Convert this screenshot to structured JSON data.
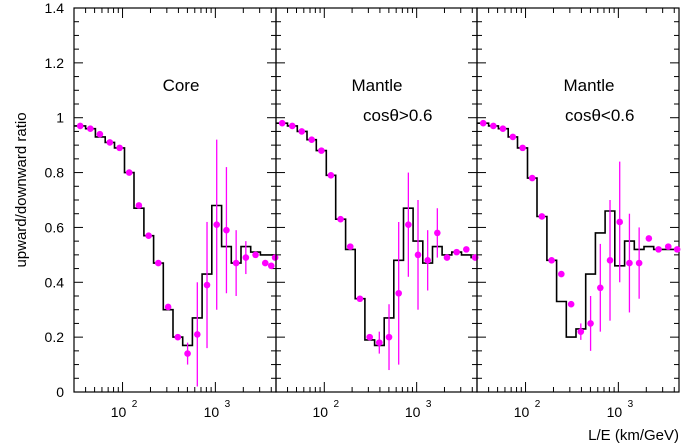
{
  "chart_data": [
    {
      "type": "step+scatter",
      "annotation": [
        "Core"
      ],
      "ylabel": "upward/downward ratio",
      "xlabel": "",
      "x_scale": "log",
      "xlim": [
        30,
        4500
      ],
      "ylim": [
        0,
        1.4
      ],
      "y_ticks": [
        "0",
        "0.2",
        "0.4",
        "0.6",
        "0.8",
        "1",
        "1.2",
        "1.4"
      ],
      "x_ticks": [
        {
          "base": "10",
          "exp": "2",
          "value": 100
        },
        {
          "base": "10",
          "exp": "3",
          "value": 1000
        }
      ],
      "step_edges": [
        30,
        40,
        51,
        65,
        82,
        105,
        133,
        170,
        216,
        275,
        350,
        445,
        566,
        720,
        916,
        1166,
        1483,
        1887,
        2400,
        3054,
        3885,
        4500
      ],
      "step_values": [
        0.97,
        0.96,
        0.93,
        0.91,
        0.89,
        0.8,
        0.67,
        0.57,
        0.47,
        0.3,
        0.2,
        0.17,
        0.27,
        0.43,
        0.68,
        0.53,
        0.47,
        0.53,
        0.51,
        0.5,
        0.5
      ],
      "points": [
        {
          "x": 35,
          "y": 0.97,
          "err": 0.0
        },
        {
          "x": 45,
          "y": 0.96,
          "err": 0.0
        },
        {
          "x": 57,
          "y": 0.94,
          "err": 0.0
        },
        {
          "x": 73,
          "y": 0.91,
          "err": 0.0
        },
        {
          "x": 93,
          "y": 0.89,
          "err": 0.0
        },
        {
          "x": 118,
          "y": 0.8,
          "err": 0.0
        },
        {
          "x": 150,
          "y": 0.68,
          "err": 0.0
        },
        {
          "x": 191,
          "y": 0.57,
          "err": 0.0
        },
        {
          "x": 243,
          "y": 0.47,
          "err": 0.0
        },
        {
          "x": 310,
          "y": 0.31,
          "err": 0.0
        },
        {
          "x": 394,
          "y": 0.2,
          "err": 0.0
        },
        {
          "x": 502,
          "y": 0.14,
          "err": 0.04
        },
        {
          "x": 639,
          "y": 0.21,
          "err": 0.19
        },
        {
          "x": 813,
          "y": 0.39,
          "err": 0.23
        },
        {
          "x": 1034,
          "y": 0.61,
          "err": 0.31
        },
        {
          "x": 1316,
          "y": 0.59,
          "err": 0.23
        },
        {
          "x": 1674,
          "y": 0.47,
          "err": 0.12
        },
        {
          "x": 2130,
          "y": 0.49,
          "err": 0.06
        },
        {
          "x": 2710,
          "y": 0.5,
          "err": 0.0
        },
        {
          "x": 3448,
          "y": 0.47,
          "err": 0.0
        },
        {
          "x": 4000,
          "y": 0.46,
          "err": 0.0
        },
        {
          "x": 4400,
          "y": 0.49,
          "err": 0.0
        }
      ]
    },
    {
      "type": "step+scatter",
      "annotation": [
        "Mantle",
        "cosθ>0.6"
      ],
      "ylabel": "",
      "xlabel": "",
      "x_scale": "log",
      "xlim": [
        30,
        4500
      ],
      "ylim": [
        0,
        1.4
      ],
      "x_ticks": [
        {
          "base": "10",
          "exp": "2",
          "value": 100
        },
        {
          "base": "10",
          "exp": "3",
          "value": 1000
        }
      ],
      "step_edges": [
        30,
        40,
        51,
        65,
        82,
        105,
        133,
        170,
        216,
        275,
        350,
        445,
        566,
        720,
        916,
        1166,
        1483,
        1887,
        2400,
        3054,
        3885,
        4500
      ],
      "step_values": [
        0.98,
        0.97,
        0.95,
        0.92,
        0.88,
        0.79,
        0.63,
        0.52,
        0.34,
        0.19,
        0.17,
        0.27,
        0.48,
        0.67,
        0.55,
        0.47,
        0.53,
        0.5,
        0.51,
        0.5,
        0.49
      ],
      "points": [
        {
          "x": 35,
          "y": 0.98,
          "err": 0.0
        },
        {
          "x": 45,
          "y": 0.97,
          "err": 0.0
        },
        {
          "x": 57,
          "y": 0.95,
          "err": 0.0
        },
        {
          "x": 73,
          "y": 0.92,
          "err": 0.0
        },
        {
          "x": 93,
          "y": 0.88,
          "err": 0.0
        },
        {
          "x": 118,
          "y": 0.79,
          "err": 0.0
        },
        {
          "x": 150,
          "y": 0.63,
          "err": 0.0
        },
        {
          "x": 191,
          "y": 0.53,
          "err": 0.0
        },
        {
          "x": 243,
          "y": 0.34,
          "err": 0.0
        },
        {
          "x": 310,
          "y": 0.2,
          "err": 0.0
        },
        {
          "x": 394,
          "y": 0.18,
          "err": 0.04
        },
        {
          "x": 502,
          "y": 0.2,
          "err": 0.12
        },
        {
          "x": 639,
          "y": 0.36,
          "err": 0.26
        },
        {
          "x": 813,
          "y": 0.61,
          "err": 0.19
        },
        {
          "x": 1034,
          "y": 0.5,
          "err": 0.2
        },
        {
          "x": 1316,
          "y": 0.48,
          "err": 0.11
        },
        {
          "x": 1674,
          "y": 0.58,
          "err": 0.09
        },
        {
          "x": 2130,
          "y": 0.49,
          "err": 0.0
        },
        {
          "x": 2710,
          "y": 0.51,
          "err": 0.0
        },
        {
          "x": 3448,
          "y": 0.52,
          "err": 0.0
        },
        {
          "x": 4300,
          "y": 0.49,
          "err": 0.0
        }
      ]
    },
    {
      "type": "step+scatter",
      "annotation": [
        "Mantle",
        "cosθ<0.6"
      ],
      "ylabel": "",
      "xlabel": "L/E (km/GeV)",
      "x_scale": "log",
      "xlim": [
        30,
        4500
      ],
      "ylim": [
        0,
        1.4
      ],
      "x_ticks": [
        {
          "base": "10",
          "exp": "2",
          "value": 100
        },
        {
          "base": "10",
          "exp": "3",
          "value": 1000
        }
      ],
      "step_edges": [
        30,
        40,
        51,
        65,
        82,
        105,
        133,
        170,
        216,
        275,
        350,
        445,
        566,
        720,
        916,
        1166,
        1483,
        1887,
        2400,
        3054,
        3885,
        4500
      ],
      "step_values": [
        0.98,
        0.97,
        0.96,
        0.93,
        0.89,
        0.78,
        0.64,
        0.48,
        0.33,
        0.2,
        0.23,
        0.43,
        0.58,
        0.66,
        0.46,
        0.55,
        0.52,
        0.53,
        0.52,
        0.52,
        0.52
      ],
      "points": [
        {
          "x": 35,
          "y": 0.98,
          "err": 0.0
        },
        {
          "x": 45,
          "y": 0.97,
          "err": 0.0
        },
        {
          "x": 57,
          "y": 0.96,
          "err": 0.0
        },
        {
          "x": 73,
          "y": 0.93,
          "err": 0.0
        },
        {
          "x": 93,
          "y": 0.89,
          "err": 0.0
        },
        {
          "x": 118,
          "y": 0.78,
          "err": 0.0
        },
        {
          "x": 150,
          "y": 0.64,
          "err": 0.0
        },
        {
          "x": 191,
          "y": 0.48,
          "err": 0.0
        },
        {
          "x": 243,
          "y": 0.43,
          "err": 0.0
        },
        {
          "x": 310,
          "y": 0.32,
          "err": 0.0
        },
        {
          "x": 394,
          "y": 0.22,
          "err": 0.03
        },
        {
          "x": 502,
          "y": 0.25,
          "err": 0.1
        },
        {
          "x": 639,
          "y": 0.38,
          "err": 0.16
        },
        {
          "x": 813,
          "y": 0.48,
          "err": 0.22
        },
        {
          "x": 1034,
          "y": 0.62,
          "err": 0.22
        },
        {
          "x": 1316,
          "y": 0.47,
          "err": 0.18
        },
        {
          "x": 1674,
          "y": 0.47,
          "err": 0.13
        },
        {
          "x": 2130,
          "y": 0.56,
          "err": 0.0
        },
        {
          "x": 2710,
          "y": 0.52,
          "err": 0.0
        },
        {
          "x": 3448,
          "y": 0.53,
          "err": 0.0
        },
        {
          "x": 4300,
          "y": 0.52,
          "err": 0.0
        }
      ]
    }
  ],
  "colors": {
    "points": "#ff00ff",
    "steps": "#000000",
    "axes": "#000000"
  }
}
